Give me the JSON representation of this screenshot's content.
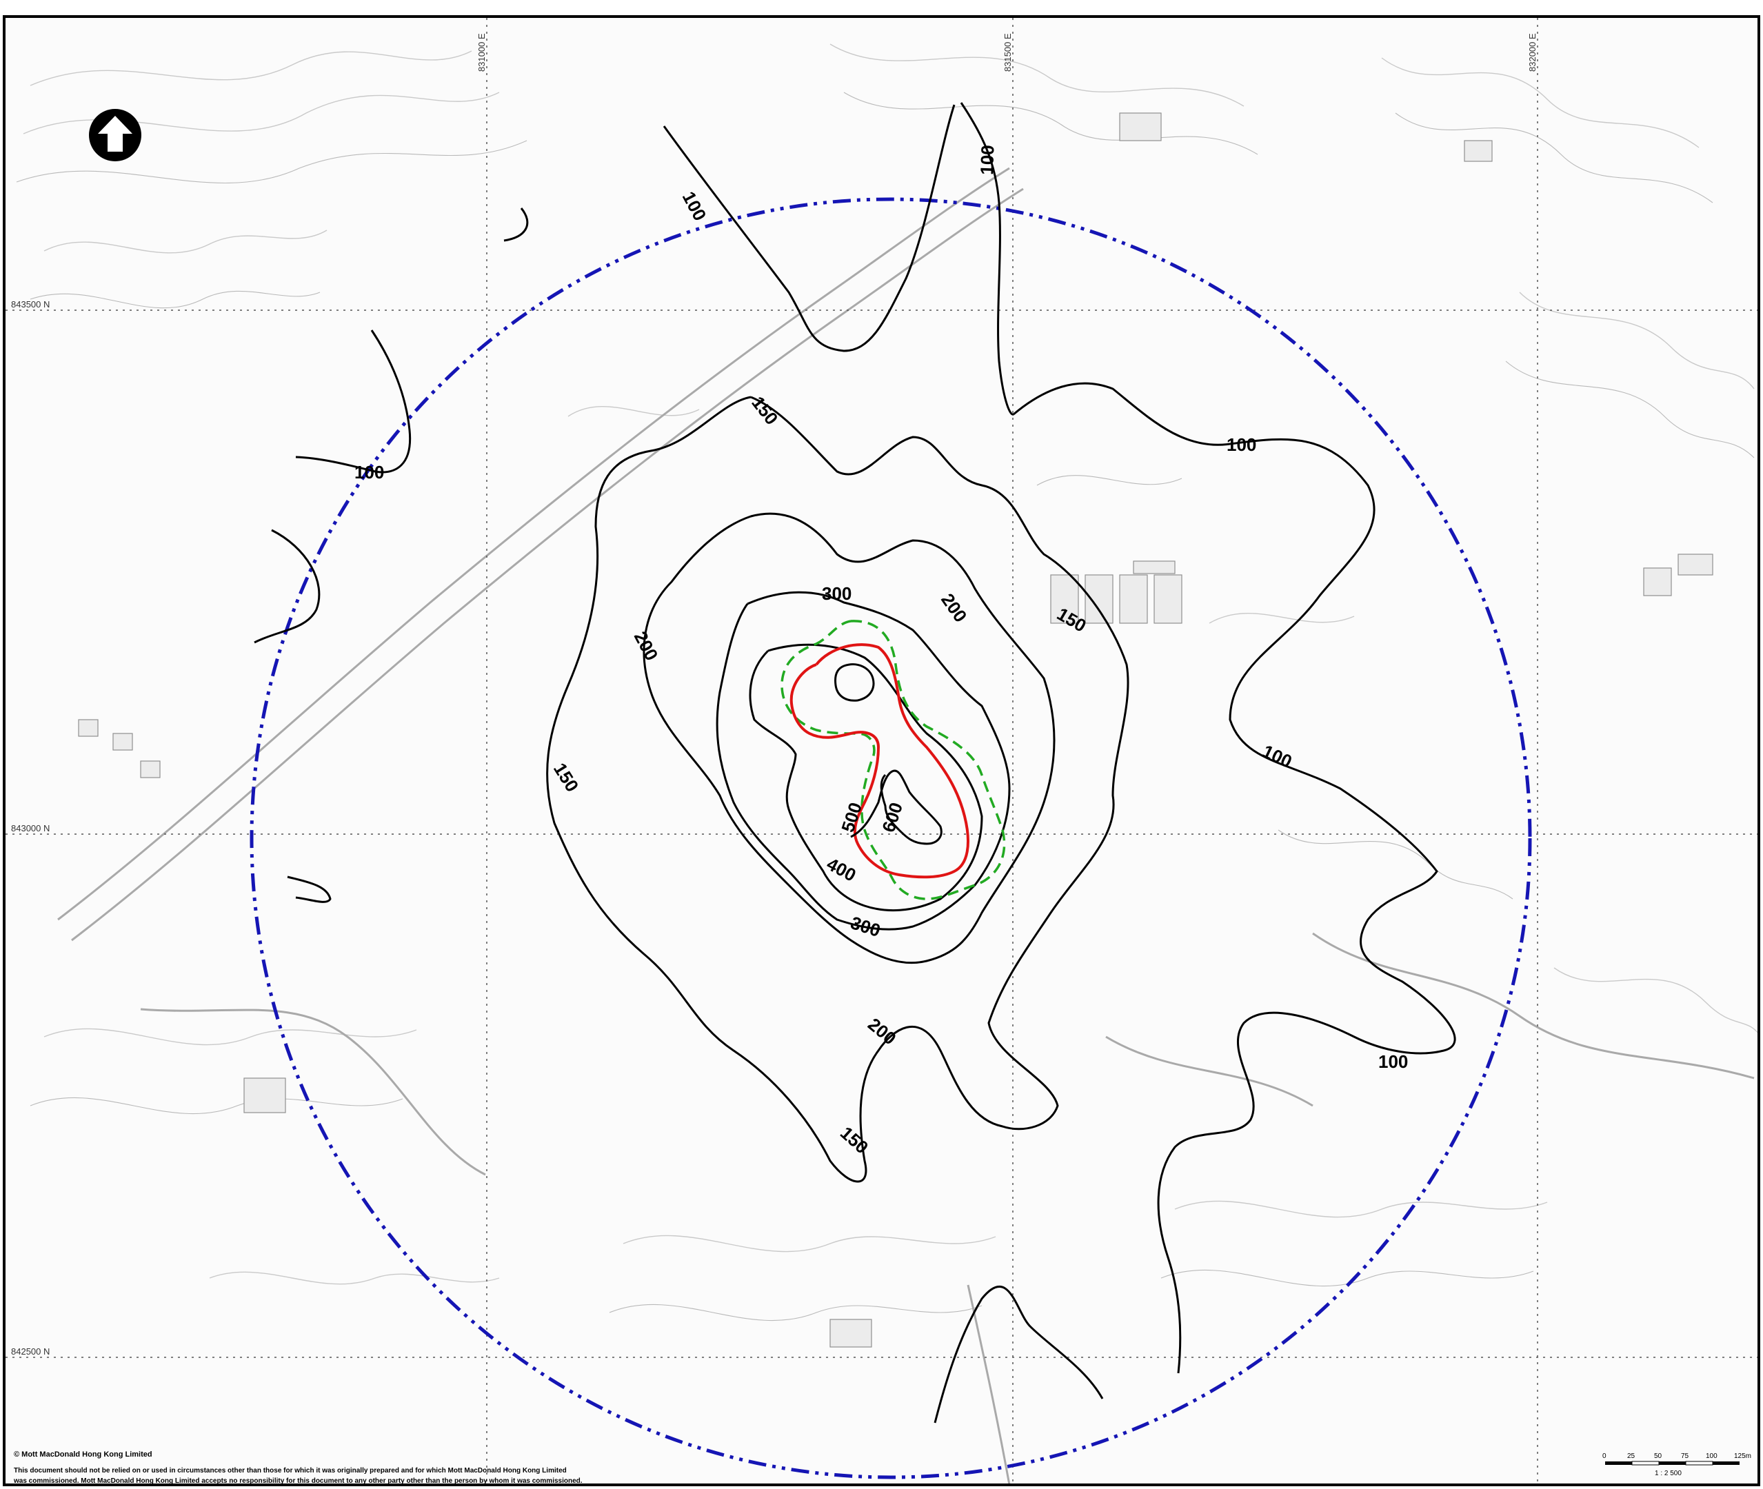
{
  "map": {
    "grid_eastings": [
      "831000 E",
      "831500 E",
      "832000 E"
    ],
    "grid_northings": [
      "843500 N",
      "843000 N",
      "842500 N"
    ],
    "contour_labels": [
      "100",
      "100",
      "100",
      "100",
      "100",
      "100",
      "150",
      "150",
      "150",
      "150",
      "200",
      "200",
      "200",
      "300",
      "300",
      "400",
      "500",
      "600"
    ],
    "colors": {
      "contour": "#000000",
      "study_area_boundary": "#1515b4",
      "red_contour": "#e01414",
      "green_boundary": "#22aa22",
      "base_map": "#c9c9c9"
    },
    "north_arrow_icon": "north-arrow-icon"
  },
  "scale_bar": {
    "ticks": [
      "0",
      "25",
      "50",
      "75",
      "100",
      "125m"
    ],
    "ratio": "1 : 2 500"
  },
  "footer": {
    "copyright": "© Mott MacDonald Hong Kong Limited",
    "disclaimer_line1": "This document should not be relied on or used in circumstances other than those for which it was originally prepared and for which Mott MacDonald Hong Kong Limited",
    "disclaimer_line2": "was commissioned. Mott MacDonald Hong Kong Limited accepts no responsibility for this document to any other party other than the person by whom it was commissioned."
  }
}
